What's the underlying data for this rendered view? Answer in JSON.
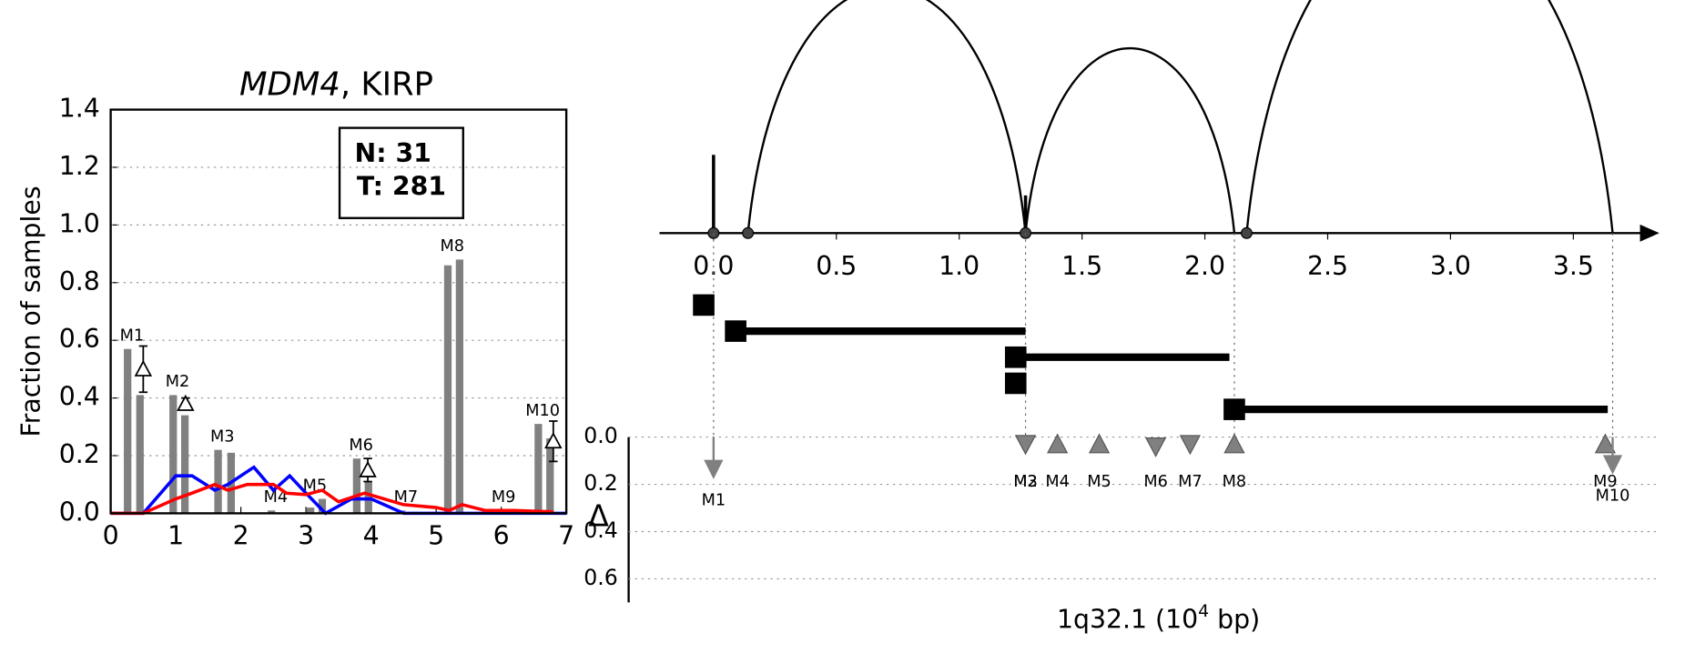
{
  "chart_data": [
    {
      "type": "bar",
      "title": [
        "MDM4",
        ", KIRP"
      ],
      "ylabel": "Fraction of samples",
      "xlim": [
        0,
        7
      ],
      "xticks": [
        0,
        1,
        2,
        3,
        4,
        5,
        6,
        7
      ],
      "ylim": [
        0,
        1.4
      ],
      "yticks": [
        {
          "value": 0,
          "label": "0.0"
        },
        {
          "value": 0.2,
          "label": "0.2"
        },
        {
          "value": 0.4,
          "label": "0.4"
        },
        {
          "value": 0.6,
          "label": "0.6"
        },
        {
          "value": 0.8,
          "label": "0.8"
        },
        {
          "value": 1.0,
          "label": "1.0"
        },
        {
          "value": 1.2,
          "label": "1.2"
        },
        {
          "value": 1.4,
          "label": "1.4"
        }
      ],
      "grid": true,
      "counts": [
        "N: 31",
        "T: 281"
      ],
      "bar_labels": [
        "M1",
        "M2",
        "M3",
        "M4",
        "M5",
        "M6",
        "M7",
        "M8",
        "M9",
        "M10"
      ],
      "series": [
        {
          "color": "#808080",
          "x": [
            0.26,
            0.96,
            1.65,
            2.47,
            3.07,
            3.78,
            4.47,
            5.18,
            5.97,
            6.57
          ],
          "values": [
            0.57,
            0.41,
            0.22,
            0.01,
            0.02,
            0.19,
            0.01,
            0.86,
            0.01,
            0.31
          ]
        },
        {
          "color": "#808080",
          "x": [
            0.45,
            1.14,
            1.85,
            2.62,
            3.25,
            3.96,
            4.62,
            5.36,
            6.12,
            6.75
          ],
          "values": [
            0.41,
            0.34,
            0.21,
            0,
            0.05,
            0.11,
            0,
            0.88,
            0,
            0.26
          ]
        }
      ],
      "deltas": {
        "x": [
          0.5,
          1.15,
          3.95,
          6.8
        ],
        "values": [
          0.5,
          0.38,
          0.15,
          0.25
        ],
        "errors": [
          0.08,
          0.02,
          0.04,
          0.07
        ]
      },
      "lines": [
        {
          "color": "#0000ff",
          "x": [
            0,
            0.5,
            1.0,
            1.25,
            1.6,
            1.8,
            2.2,
            2.5,
            2.75,
            3.0,
            3.3,
            3.7,
            4.0,
            4.5,
            5.0,
            6.0,
            7.0
          ],
          "values": [
            0,
            0,
            0.13,
            0.13,
            0.08,
            0.1,
            0.16,
            0.08,
            0.13,
            0.07,
            0,
            0.05,
            0.05,
            0,
            0,
            0,
            0
          ]
        },
        {
          "color": "#ff0000",
          "x": [
            0,
            0.5,
            1.0,
            1.25,
            1.6,
            1.8,
            2.1,
            2.5,
            2.7,
            3.0,
            3.25,
            3.5,
            3.9,
            4.2,
            4.5,
            5.0,
            5.2,
            5.4,
            5.75,
            6.2,
            6.8
          ],
          "values": [
            0,
            0,
            0.05,
            0.07,
            0.1,
            0.08,
            0.1,
            0.1,
            0.07,
            0.065,
            0.08,
            0.04,
            0.07,
            0.05,
            0.03,
            0.02,
            0.01,
            0.03,
            0.01,
            0.01,
            0.005
          ]
        }
      ]
    },
    {
      "type": "arc",
      "xlim": [
        -0.22,
        3.85
      ],
      "xticks": [
        {
          "value": 0,
          "label": "0.0"
        },
        {
          "value": 0.5,
          "label": "0.5"
        },
        {
          "value": 1.0,
          "label": "1.0"
        },
        {
          "value": 1.5,
          "label": "1.5"
        },
        {
          "value": 2.0,
          "label": "2.0"
        },
        {
          "value": 2.5,
          "label": "2.5"
        },
        {
          "value": 3.0,
          "label": "3.0"
        },
        {
          "value": 3.5,
          "label": "3.5"
        }
      ],
      "xlabel": [
        "1q32.1 (10",
        "4",
        " bp)"
      ],
      "arcs": [
        {
          "start": 0.14,
          "end": 1.27
        },
        {
          "start": 1.27,
          "end": 2.12
        },
        {
          "start": 2.17,
          "end": 3.66
        }
      ],
      "spikes": [
        {
          "x": 0,
          "height": 0.54
        },
        {
          "x": 1.27,
          "height": 0.26
        }
      ],
      "dots": [
        0,
        0.14,
        1.27,
        2.17
      ],
      "segments": [
        {
          "start": -0.04,
          "end": 0
        },
        {
          "start": 0.09,
          "end": 1.27
        },
        {
          "start": 1.23,
          "end": 2.1
        },
        {
          "start": 1.23,
          "end": 1.27
        },
        {
          "start": 2.12,
          "end": 3.64
        }
      ],
      "guides": [
        0,
        1.27,
        2.12,
        3.66
      ],
      "delta": {
        "ylabel": "Δ",
        "ylim": [
          0,
          0.7
        ],
        "yticks": [
          {
            "value": 0,
            "label": "0.0"
          },
          {
            "value": 0.2,
            "label": "0.2"
          },
          {
            "value": 0.4,
            "label": "0.4"
          },
          {
            "value": 0.6,
            "label": "0.6"
          }
        ],
        "color": "#808080",
        "markers": [
          {
            "label": "M1",
            "x": 0,
            "value": 0.16,
            "direction": "down",
            "style": "arrow"
          },
          {
            "label": "M2",
            "x": 1.27,
            "value": 0.03,
            "direction": "down",
            "style": "triangle"
          },
          {
            "label": "M3",
            "x": 1.27,
            "value": 0.03,
            "direction": "down",
            "style": "triangle"
          },
          {
            "label": "M4",
            "x": 1.4,
            "value": 0.03,
            "direction": "up",
            "style": "triangle"
          },
          {
            "label": "M5",
            "x": 1.57,
            "value": 0.03,
            "direction": "up",
            "style": "triangle"
          },
          {
            "label": "M6",
            "x": 1.8,
            "value": 0.04,
            "direction": "down",
            "style": "triangle"
          },
          {
            "label": "M7",
            "x": 1.94,
            "value": 0.03,
            "direction": "down",
            "style": "triangle"
          },
          {
            "label": "M8",
            "x": 2.12,
            "value": 0.03,
            "direction": "up",
            "style": "triangle"
          },
          {
            "label": "M9",
            "x": 3.63,
            "value": 0.03,
            "direction": "up",
            "style": "triangle"
          },
          {
            "label": "M10",
            "x": 3.66,
            "value": 0.14,
            "direction": "down",
            "style": "arrow"
          }
        ]
      }
    }
  ]
}
